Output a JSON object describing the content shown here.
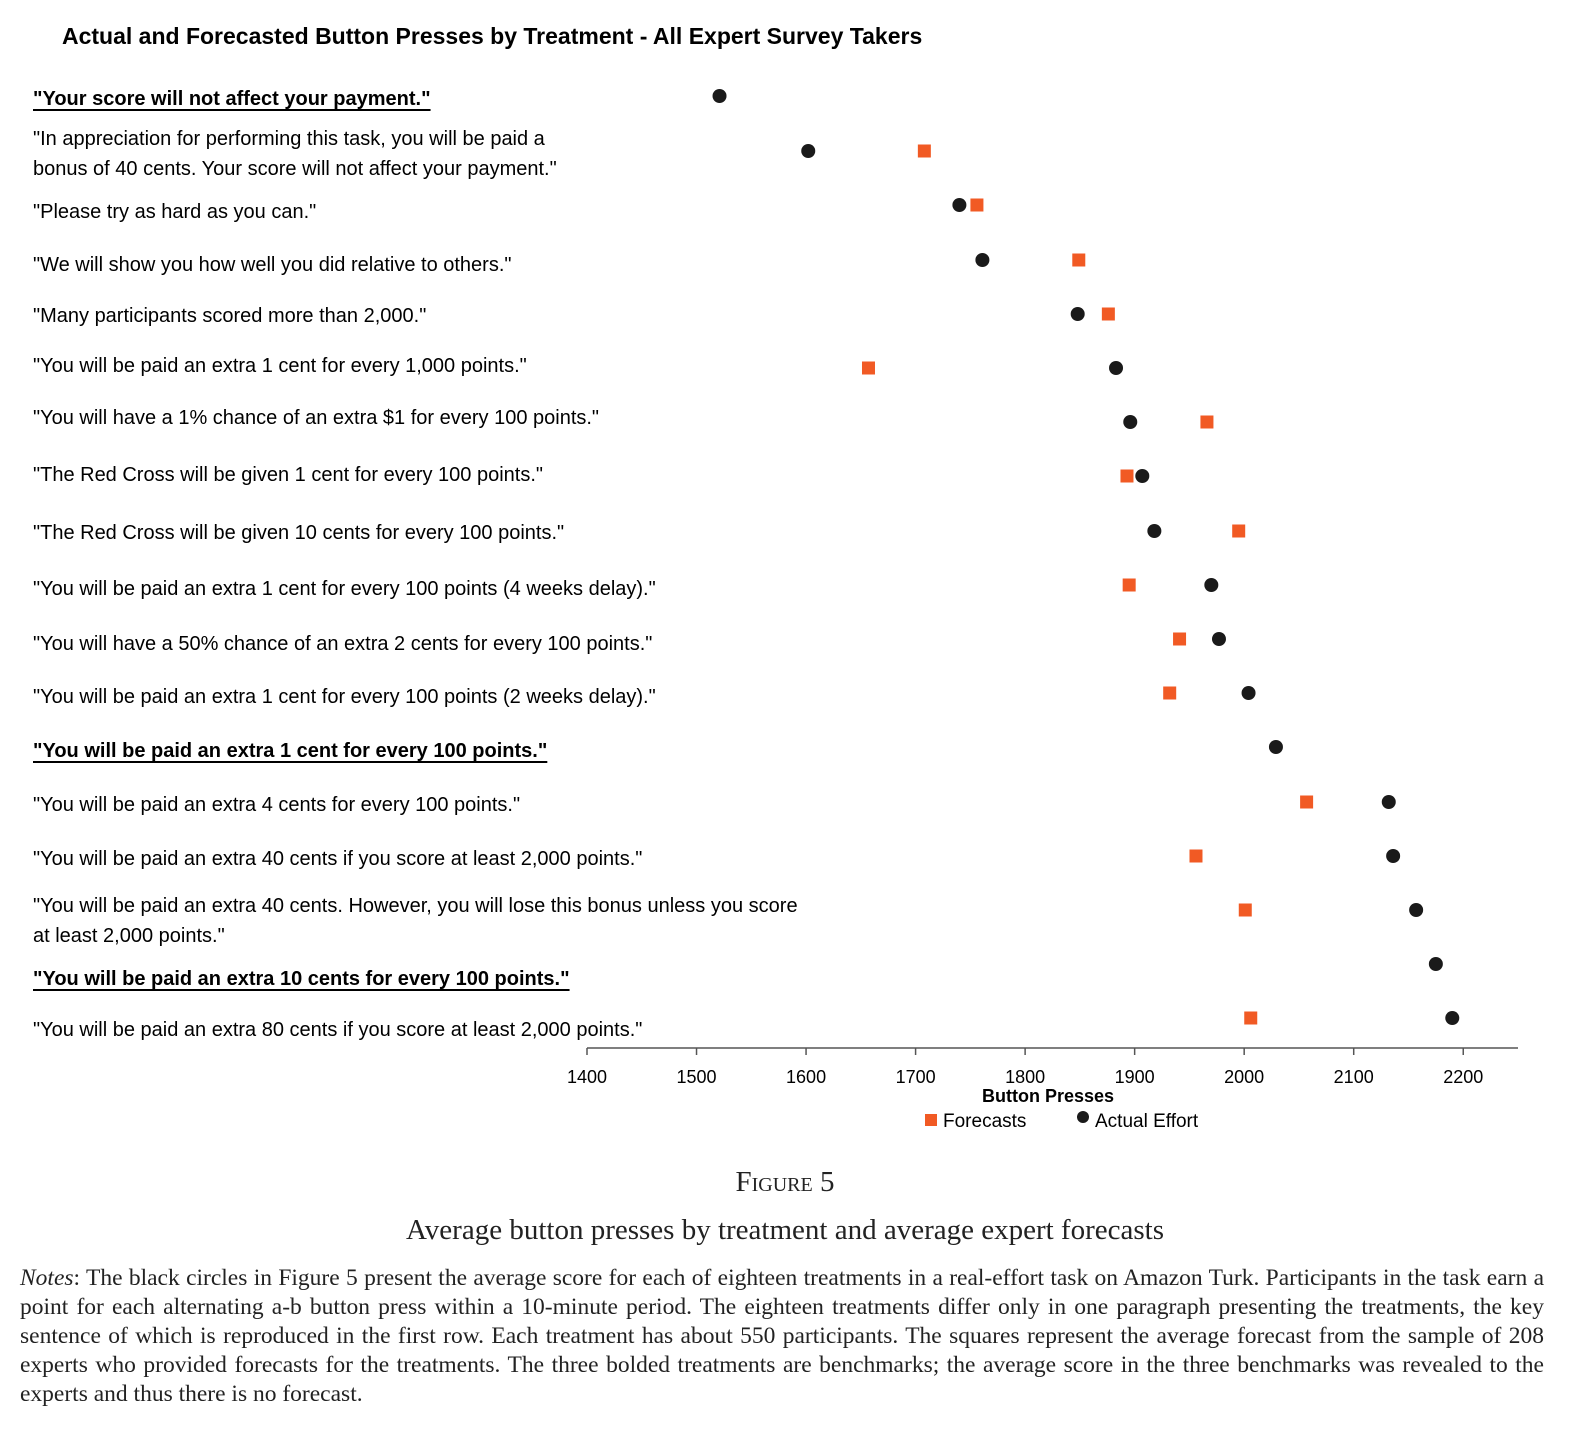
{
  "chart_data": {
    "type": "scatter",
    "title": "Actual and Forecasted Button Presses by Treatment - All Expert Survey Takers",
    "xlabel": "Button Presses",
    "xlim": [
      1400,
      2250
    ],
    "xticks": [
      1400,
      1500,
      1600,
      1700,
      1800,
      1900,
      2000,
      2100,
      2200
    ],
    "legend_position": "bottom-center",
    "series": [
      {
        "name": "Forecasts",
        "marker": "square",
        "color": "#f15a24"
      },
      {
        "name": "Actual Effort",
        "marker": "circle",
        "color": "#1a1a1a"
      }
    ],
    "categories": [
      {
        "lines": [
          "\"Your score will not affect your payment.\""
        ],
        "bold": true,
        "actual": 1521,
        "forecast": null
      },
      {
        "lines": [
          "\"In appreciation for performing this task, you will be paid a",
          "bonus of 40 cents. Your score will not affect your payment.\""
        ],
        "bold": false,
        "actual": 1602,
        "forecast": 1708
      },
      {
        "lines": [
          "\"Please try as hard as you can.\""
        ],
        "bold": false,
        "actual": 1740,
        "forecast": 1756
      },
      {
        "lines": [
          "\"We will show you how well you did relative to others.\""
        ],
        "bold": false,
        "actual": 1761,
        "forecast": 1849
      },
      {
        "lines": [
          "\"Many participants scored more than 2,000.\""
        ],
        "bold": false,
        "actual": 1848,
        "forecast": 1876
      },
      {
        "lines": [
          "\"You will be paid an extra 1 cent for every 1,000 points.\""
        ],
        "bold": false,
        "actual": 1883,
        "forecast": 1657
      },
      {
        "lines": [
          "\"You will have a 1% chance of an extra $1 for every 100 points.\""
        ],
        "bold": false,
        "actual": 1896,
        "forecast": 1966
      },
      {
        "lines": [
          "\"The Red Cross will be given 1 cent for every 100 points.\""
        ],
        "bold": false,
        "actual": 1907,
        "forecast": 1893
      },
      {
        "lines": [
          "\"The Red Cross will be given 10 cents for every 100 points.\""
        ],
        "bold": false,
        "actual": 1918,
        "forecast": 1995
      },
      {
        "lines": [
          "\"You will  be paid an extra 1 cent for every 100 points (4 weeks delay).\""
        ],
        "bold": false,
        "actual": 1970,
        "forecast": 1895
      },
      {
        "lines": [
          "\"You will have a 50% chance of an extra 2 cents for every 100 points.\""
        ],
        "bold": false,
        "actual": 1977,
        "forecast": 1941
      },
      {
        "lines": [
          "\"You will  be paid an extra 1 cent for every 100 points (2 weeks delay).\""
        ],
        "bold": false,
        "actual": 2004,
        "forecast": 1932
      },
      {
        "lines": [
          "\"You will  be paid an extra 1 cent for every 100 points.\""
        ],
        "bold": true,
        "actual": 2029,
        "forecast": null
      },
      {
        "lines": [
          "\"You will  be paid an extra 4 cents for every 100 points.\""
        ],
        "bold": false,
        "actual": 2132,
        "forecast": 2057
      },
      {
        "lines": [
          "\"You will be paid an extra 40 cents if you score at least 2,000 points.\""
        ],
        "bold": false,
        "actual": 2136,
        "forecast": 1956
      },
      {
        "lines": [
          "\"You will be paid an extra 40 cents. However, you will lose this bonus unless you score",
          "at least 2,000 points.\""
        ],
        "bold": false,
        "actual": 2157,
        "forecast": 2001
      },
      {
        "lines": [
          "\"You will be paid an extra 10 cents for every 100 points.\""
        ],
        "bold": true,
        "actual": 2175,
        "forecast": null
      },
      {
        "lines": [
          "\"You will be paid an extra 80 cents if you score at least 2,000 points.\""
        ],
        "bold": false,
        "actual": 2190,
        "forecast": 2006
      }
    ]
  },
  "caption": {
    "label": "Figure 5",
    "text": "Average button presses by treatment and average expert forecasts"
  },
  "notes": {
    "lead": "Notes",
    "body": ": The black circles in Figure 5 present the average score for each of eighteen treatments in a real-effort task on Amazon Turk. Participants in the task earn a point for each alternating a-b button press within a 10-minute period. The eighteen treatments differ only in one paragraph presenting the treatments, the key sentence of which is reproduced in the first row. Each treatment has about 550 participants. The squares represent the average forecast from the sample of 208 experts who provided forecasts for the treatments. The three bolded treatments are benchmarks; the average score in the three benchmarks was revealed to the experts and thus there is no forecast."
  }
}
